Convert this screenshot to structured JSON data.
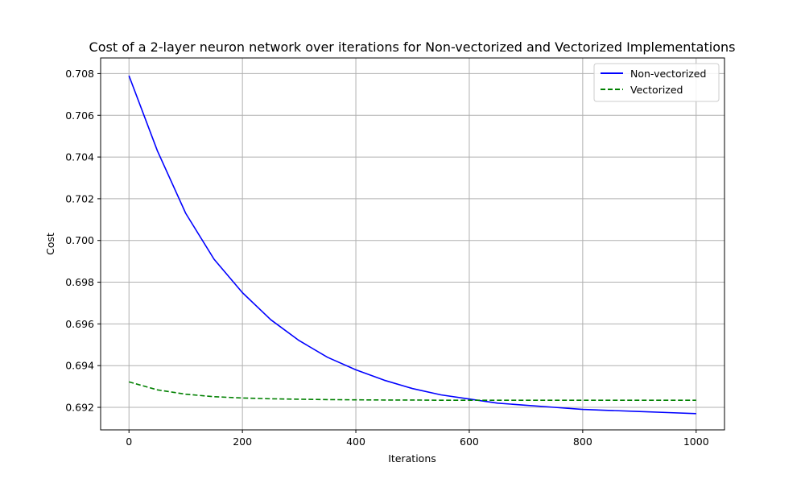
{
  "chart_data": {
    "type": "line",
    "title": "Cost of a 2-layer neuron network over iterations for Non-vectorized and Vectorized Implementations",
    "xlabel": "Iterations",
    "ylabel": "Cost",
    "xlim": [
      -50,
      1050
    ],
    "ylim": [
      0.69092,
      0.70875
    ],
    "xticks": [
      0,
      200,
      400,
      600,
      800,
      1000
    ],
    "xtick_labels": [
      "0",
      "200",
      "400",
      "600",
      "800",
      "1000"
    ],
    "yticks": [
      0.692,
      0.694,
      0.696,
      0.698,
      0.7,
      0.702,
      0.704,
      0.706,
      0.708
    ],
    "ytick_labels": [
      "0.692",
      "0.694",
      "0.696",
      "0.698",
      "0.700",
      "0.702",
      "0.704",
      "0.706",
      "0.708"
    ],
    "grid": true,
    "legend_position": "top-right",
    "series": [
      {
        "name": "Non-vectorized",
        "color": "#0000ff",
        "style": "solid",
        "x": [
          0,
          50,
          100,
          150,
          200,
          250,
          300,
          350,
          400,
          450,
          500,
          550,
          600,
          650,
          700,
          750,
          800,
          850,
          900,
          950,
          1000
        ],
        "y": [
          0.7079,
          0.7043,
          0.7013,
          0.6991,
          0.6975,
          0.6962,
          0.6952,
          0.6944,
          0.6938,
          0.6933,
          0.6929,
          0.6926,
          0.6924,
          0.6922,
          0.6921,
          0.692,
          0.6919,
          0.69185,
          0.6918,
          0.69175,
          0.6917
        ]
      },
      {
        "name": "Vectorized",
        "color": "#008000",
        "style": "dashed",
        "x": [
          0,
          50,
          100,
          150,
          200,
          250,
          300,
          350,
          400,
          450,
          500,
          550,
          600,
          650,
          700,
          750,
          800,
          850,
          900,
          950,
          1000
        ],
        "y": [
          0.69322,
          0.69284,
          0.69263,
          0.69251,
          0.69245,
          0.69241,
          0.69239,
          0.69237,
          0.69236,
          0.69235,
          0.69235,
          0.69234,
          0.69234,
          0.69234,
          0.69234,
          0.69234,
          0.69234,
          0.69234,
          0.69234,
          0.69234,
          0.69234
        ]
      }
    ]
  }
}
